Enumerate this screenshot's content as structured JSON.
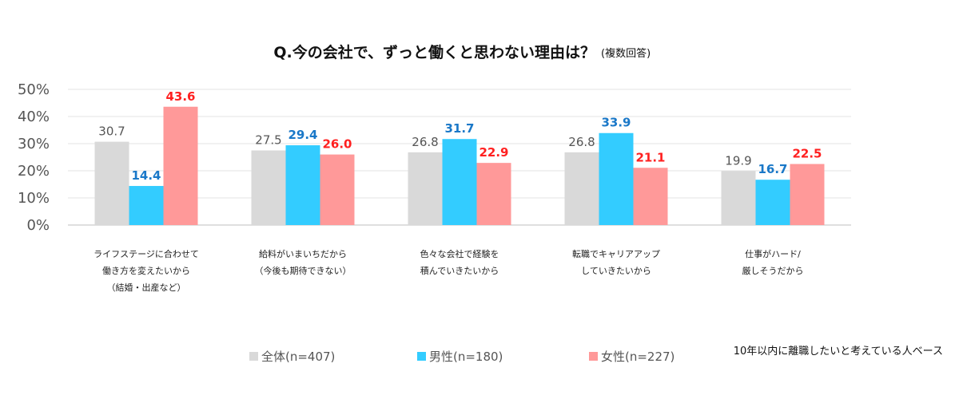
{
  "chart_data": {
    "type": "bar",
    "title": "Q.今の会社で、ずっと働くと思わない理由は？",
    "subtitle": "(複数回答)",
    "xlabel": "",
    "ylabel": "",
    "ylim": [
      0,
      50
    ],
    "yticks": [
      "0%",
      "10%",
      "20%",
      "30%",
      "40%",
      "50%"
    ],
    "grid": true,
    "legend_position": "bottom",
    "categories": [
      [
        "ライフステージに合わせて",
        "働き方を変えたいから",
        "（結婚・出産など）"
      ],
      [
        "給料がいまいちだから",
        "（今後も期待できない）"
      ],
      [
        "色々な会社で経験を",
        "積んでいきたいから"
      ],
      [
        "転職でキャリアアップ",
        "していきたいから"
      ],
      [
        "仕事がハード/",
        "厳しそうだから"
      ]
    ],
    "series": [
      {
        "name": "全体(n=407)",
        "color": "#d9d9d9",
        "label_color": "#555555",
        "values": [
          30.7,
          27.5,
          26.8,
          26.8,
          19.9
        ],
        "labels": [
          "30.7",
          "27.5",
          "26.8",
          "26.8",
          "19.9"
        ]
      },
      {
        "name": "男性(n=180)",
        "color": "#33ccff",
        "label_color": "#1a78c8",
        "values": [
          14.4,
          29.4,
          31.7,
          33.9,
          16.7
        ],
        "labels": [
          "14.4",
          "29.4",
          "31.7",
          "33.9",
          "16.7"
        ]
      },
      {
        "name": "女性(n=227)",
        "color": "#ff9999",
        "label_color": "#ff2020",
        "values": [
          43.6,
          26.0,
          22.9,
          21.1,
          22.5
        ],
        "labels": [
          "43.6",
          "26.0",
          "22.9",
          "21.1",
          "22.5"
        ]
      }
    ],
    "note": "10年以内に離職したいと考えている人ベース"
  }
}
